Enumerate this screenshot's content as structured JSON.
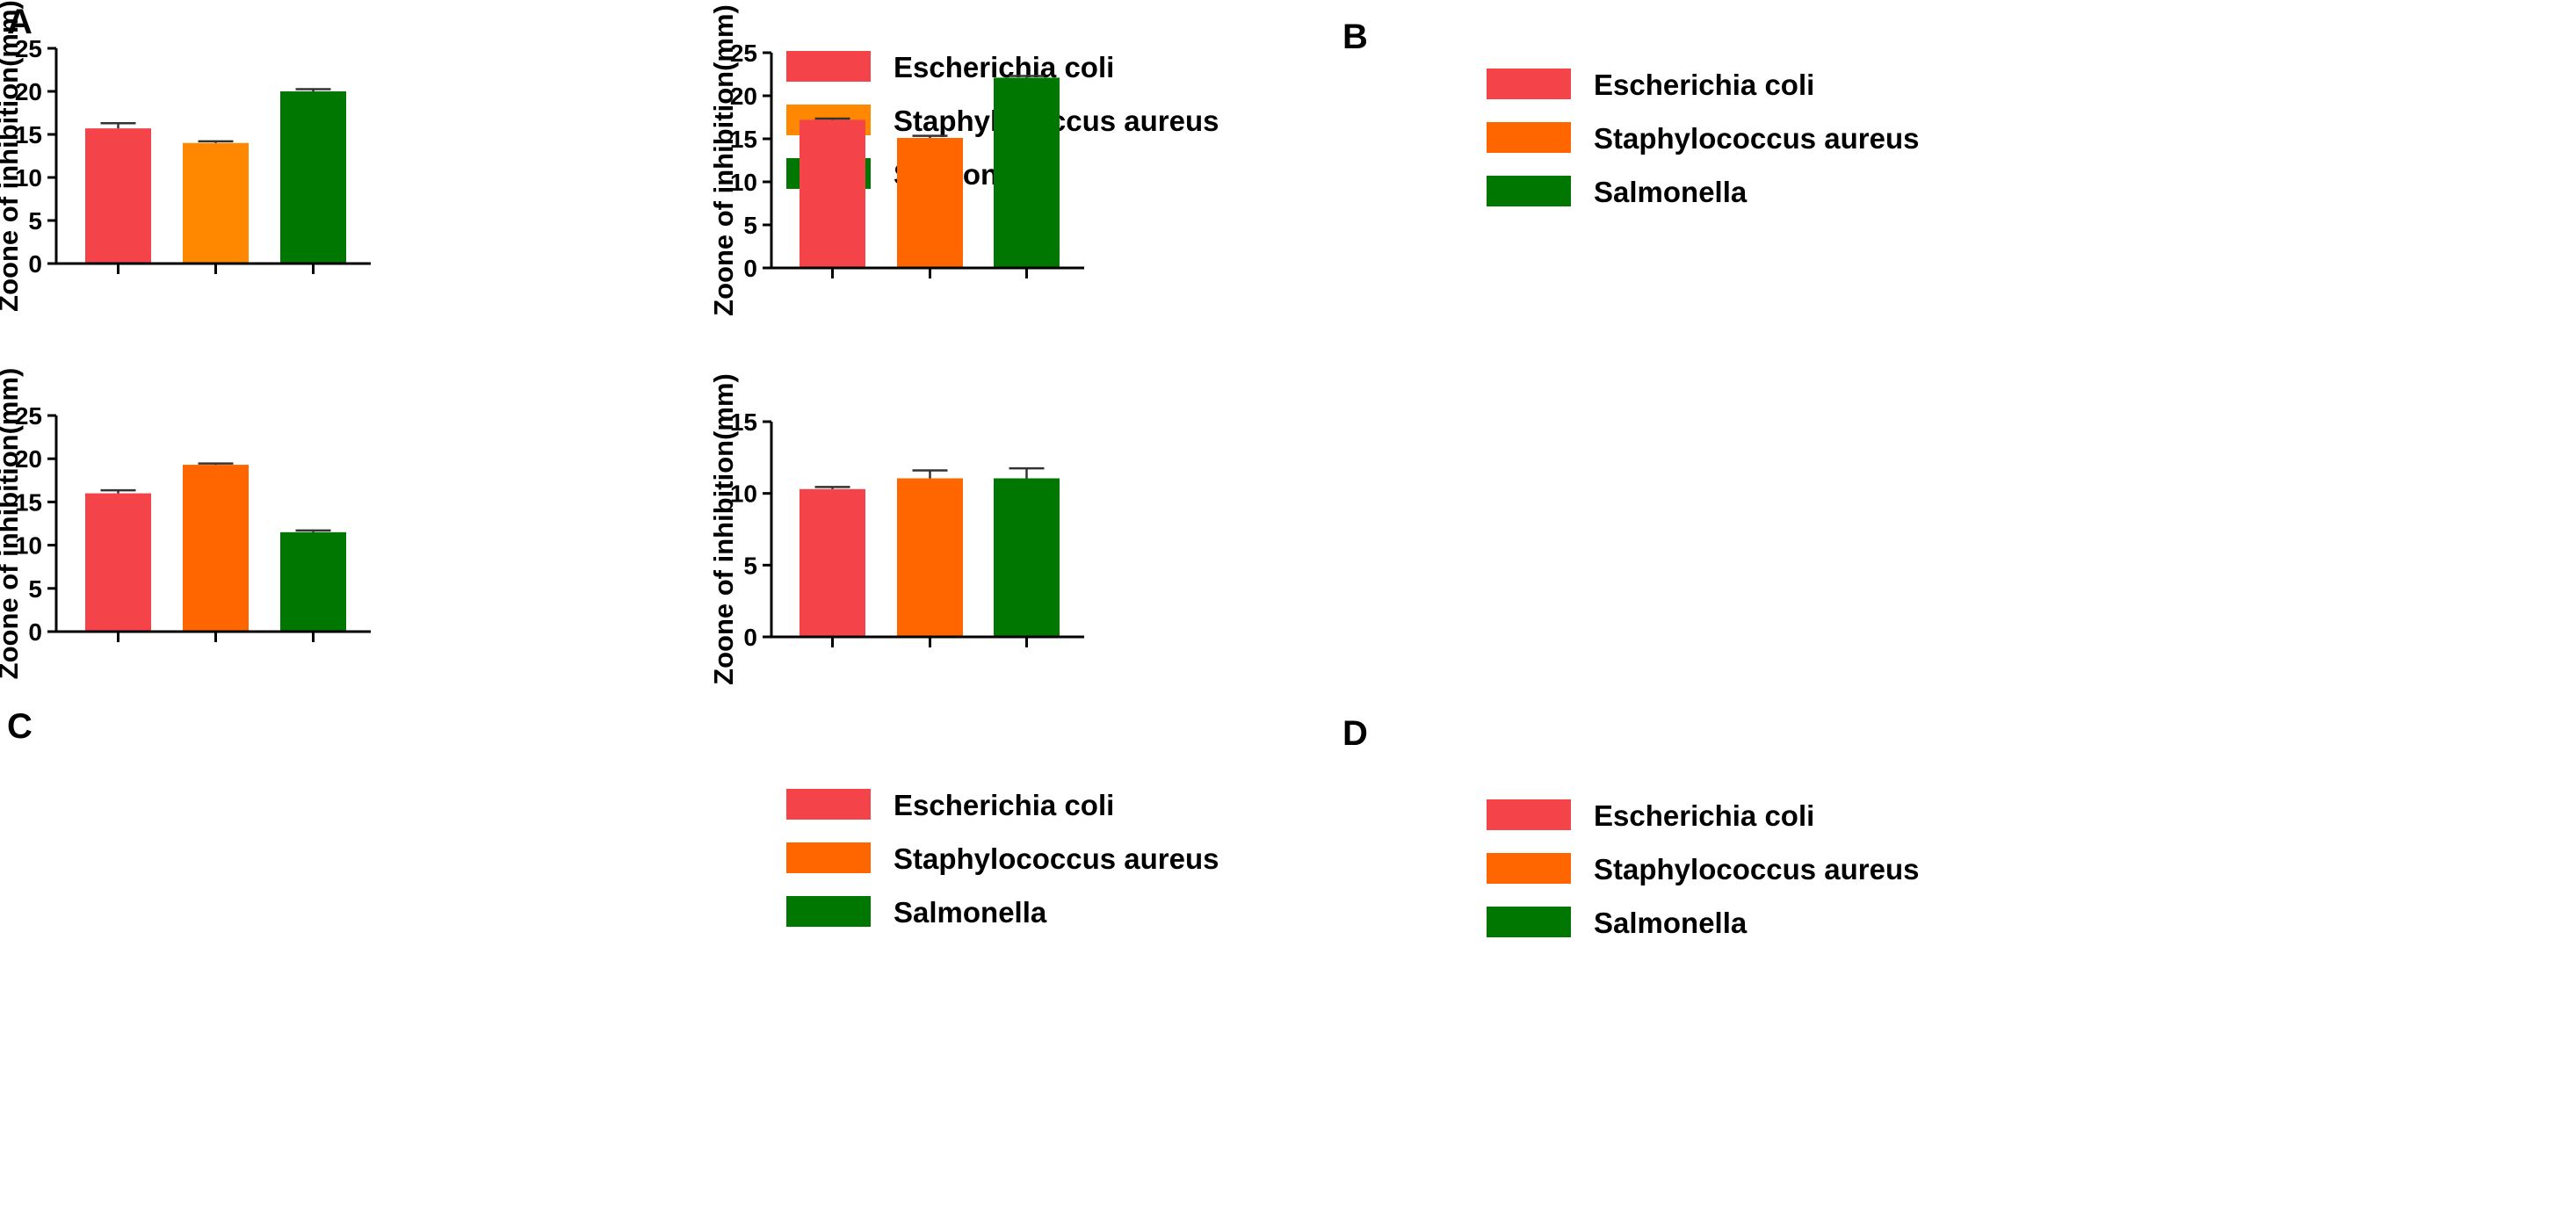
{
  "colors": {
    "ecoli": "#f44449",
    "saureus_a": "#ff8800",
    "saureus": "#ff6600",
    "salmonella": "#007700"
  },
  "chart_data": [
    {
      "panel": "A",
      "type": "bar",
      "ylabel": "Zoone of inhibition(mm)",
      "ylim": [
        0,
        25
      ],
      "yticks": [
        "0",
        "5",
        "10",
        "15",
        "20",
        "25"
      ],
      "categories": [
        "Escherichia coli",
        "Staphylococcus aureus",
        "Salmonella"
      ],
      "values": [
        15.7,
        14.0,
        20.0
      ],
      "errors": [
        0.6,
        0.2,
        0.25
      ],
      "colors": [
        "#f44449",
        "#ff8800",
        "#007700"
      ]
    },
    {
      "panel": "B",
      "type": "bar",
      "ylabel": "Zoone of inhibition(mm)",
      "ylim": [
        0,
        25
      ],
      "yticks": [
        "0",
        "5",
        "10",
        "15",
        "20",
        "25"
      ],
      "categories": [
        "Escherichia coli",
        "Staphylococcus aureus",
        "Salmonella"
      ],
      "values": [
        17.2,
        15.1,
        22.1
      ],
      "errors": [
        0.15,
        0.25,
        0.2
      ],
      "colors": [
        "#f44449",
        "#ff6600",
        "#007700"
      ]
    },
    {
      "panel": "C",
      "type": "bar",
      "ylabel": "Zoone of inhibition(mm)",
      "ylim": [
        0,
        25
      ],
      "yticks": [
        "0",
        "5",
        "10",
        "15",
        "20",
        "25"
      ],
      "categories": [
        "Escherichia coli",
        "Staphylococcus aureus",
        "Salmonella"
      ],
      "values": [
        16.0,
        19.3,
        11.5
      ],
      "errors": [
        0.35,
        0.15,
        0.2
      ],
      "colors": [
        "#f44449",
        "#ff6600",
        "#007700"
      ]
    },
    {
      "panel": "D",
      "type": "bar",
      "ylabel": "Zoone of inhibition(mm)",
      "ylim": [
        0,
        15
      ],
      "yticks": [
        "0",
        "5",
        "10",
        "15"
      ],
      "categories": [
        "Escherichia coli",
        "Staphylococcus aureus",
        "Salmonella"
      ],
      "values": [
        10.3,
        11.05,
        11.05
      ],
      "errors": [
        0.15,
        0.55,
        0.7
      ],
      "colors": [
        "#f44449",
        "#ff6600",
        "#007700"
      ]
    }
  ]
}
